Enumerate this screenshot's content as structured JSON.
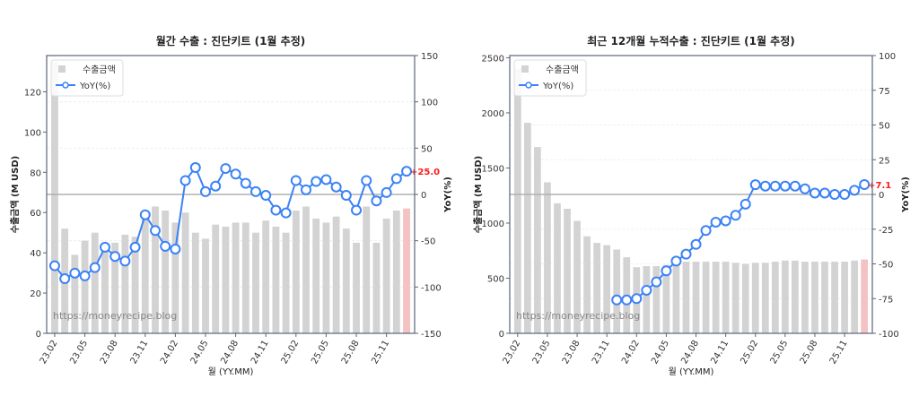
{
  "chart_data": [
    {
      "type": "bar+line",
      "title": "월간 수출 : 진단키트 (1월 추정)",
      "xlabel": "월 (YY.MM)",
      "ylabel": "수출금액 (M USD)",
      "y2label": "YoY(%)",
      "ylim": [
        0,
        138
      ],
      "y2lim": [
        -150,
        150
      ],
      "yticks": [
        0,
        20,
        40,
        60,
        80,
        100,
        120
      ],
      "y2ticks": [
        -150,
        -100,
        -50,
        0,
        50,
        100,
        150
      ],
      "xticks": [
        "23.02",
        "23.05",
        "23.08",
        "23.11",
        "24.02",
        "24.05",
        "24.08",
        "24.11",
        "25.02",
        "25.05",
        "25.08",
        "25.11"
      ],
      "legend": [
        "수출금액",
        "YoY(%)"
      ],
      "legend_position": "upper left",
      "watermark": "https://moneyrecipe.blog",
      "last_label": "+25.0",
      "categories": [
        "23.02",
        "23.03",
        "23.04",
        "23.05",
        "23.06",
        "23.07",
        "23.08",
        "23.09",
        "23.10",
        "23.11",
        "23.12",
        "24.01",
        "24.02",
        "24.03",
        "24.04",
        "24.05",
        "24.06",
        "24.07",
        "24.08",
        "24.09",
        "24.10",
        "24.11",
        "24.12",
        "25.01",
        "25.02",
        "25.03",
        "25.04",
        "25.05",
        "25.06",
        "25.07",
        "25.08",
        "25.09",
        "25.10",
        "25.11",
        "25.12",
        "26.01"
      ],
      "series": [
        {
          "name": "수출금액",
          "kind": "bar",
          "values": [
            135,
            52,
            39,
            46,
            50,
            43,
            45,
            49,
            48,
            58,
            63,
            61,
            55,
            60,
            50,
            47,
            54,
            53,
            55,
            55,
            50,
            56,
            53,
            50,
            61,
            63,
            57,
            55,
            58,
            52,
            45,
            63,
            45,
            57,
            61,
            62
          ]
        },
        {
          "name": "YoY(%)",
          "kind": "line",
          "values": [
            -77,
            -91,
            -85,
            -88,
            -79,
            -57,
            -67,
            -72,
            -57,
            -22,
            -39,
            -56,
            -59,
            15,
            29,
            3,
            9,
            28,
            22,
            12,
            3,
            -1,
            -17,
            -20,
            15,
            5,
            14,
            16,
            8,
            -1,
            -17,
            15,
            -7,
            2,
            17,
            25
          ]
        }
      ],
      "estimated_last_bar": true
    },
    {
      "type": "bar+line",
      "title": "최근 12개월 누적수출 : 진단키트 (1월 추정)",
      "xlabel": "월 (YY.MM)",
      "ylabel": "수출금액 (M USD)",
      "y2label": "YoY(%)",
      "ylim": [
        0,
        2520
      ],
      "y2lim": [
        -100,
        100
      ],
      "yticks": [
        0,
        500,
        1000,
        1500,
        2000,
        2500
      ],
      "y2ticks": [
        -100,
        -75,
        -50,
        -25,
        0,
        25,
        50,
        75,
        100
      ],
      "xticks": [
        "23.02",
        "23.05",
        "23.08",
        "23.11",
        "24.02",
        "24.05",
        "24.08",
        "24.11",
        "25.02",
        "25.05",
        "25.08",
        "25.11"
      ],
      "legend": [
        "수출금액",
        "YoY(%)"
      ],
      "legend_position": "upper left",
      "watermark": "https://moneyrecipe.blog",
      "last_label": "+7.1",
      "categories": [
        "23.02",
        "23.03",
        "23.04",
        "23.05",
        "23.06",
        "23.07",
        "23.08",
        "23.09",
        "23.10",
        "23.11",
        "23.12",
        "24.01",
        "24.02",
        "24.03",
        "24.04",
        "24.05",
        "24.06",
        "24.07",
        "24.08",
        "24.09",
        "24.10",
        "24.11",
        "24.12",
        "25.01",
        "25.02",
        "25.03",
        "25.04",
        "25.05",
        "25.06",
        "25.07",
        "25.08",
        "25.09",
        "25.10",
        "25.11",
        "25.12",
        "26.01"
      ],
      "series": [
        {
          "name": "수출금액",
          "kind": "bar",
          "values": [
            2400,
            1910,
            1690,
            1370,
            1180,
            1130,
            1020,
            880,
            820,
            800,
            760,
            690,
            600,
            610,
            610,
            620,
            640,
            650,
            650,
            650,
            650,
            650,
            640,
            630,
            640,
            640,
            650,
            660,
            660,
            650,
            650,
            650,
            650,
            650,
            660,
            670
          ]
        },
        {
          "name": "YoY(%)",
          "kind": "line",
          "values": [
            null,
            null,
            null,
            null,
            null,
            null,
            null,
            null,
            null,
            null,
            -76,
            -76,
            -75,
            -69,
            -63,
            -55,
            -48,
            -43,
            -36,
            -26,
            -20,
            -19,
            -15,
            -7,
            7,
            6,
            6,
            6,
            6,
            4,
            1,
            1,
            0,
            0,
            3,
            7.1
          ]
        }
      ],
      "estimated_last_bar": true
    }
  ],
  "colors": {
    "bar": "#d3d3d3",
    "bar_estimated": "#f4c2c2",
    "line": "#3b82f6",
    "last_label": "#ff1a1a",
    "zero_line": "#b0b0b0",
    "frame": "#5a6478"
  }
}
